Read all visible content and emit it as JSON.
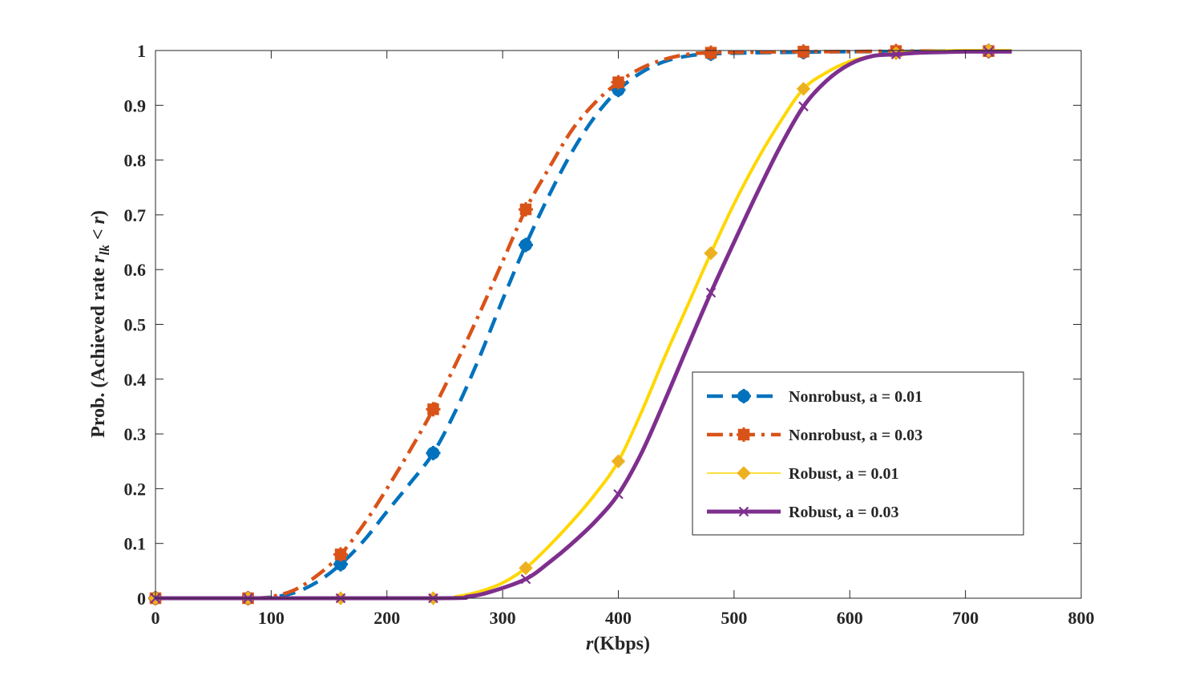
{
  "chart_data": {
    "type": "line",
    "title": "",
    "xlabel": {
      "italic": "r",
      "rest": "(Kbps)"
    },
    "ylabel": {
      "prefix": "Prob. (Achieved rate ",
      "var": "r",
      "sub": "lk",
      "rel": " < ",
      "var2": "r",
      "suffix": ")"
    },
    "xlim": [
      0,
      800
    ],
    "ylim": [
      0,
      1
    ],
    "xticks": [
      0,
      100,
      200,
      300,
      400,
      500,
      600,
      700,
      800
    ],
    "yticks": [
      0,
      0.1,
      0.2,
      0.3,
      0.4,
      0.5,
      0.6,
      0.7,
      0.8,
      0.9,
      1
    ],
    "xtick_labels": [
      "0",
      "100",
      "200",
      "300",
      "400",
      "500",
      "600",
      "700",
      "800"
    ],
    "ytick_labels": [
      "0",
      "0.1",
      "0.2",
      "0.3",
      "0.4",
      "0.5",
      "0.6",
      "0.7",
      "0.8",
      "0.9",
      "1"
    ],
    "grid": false,
    "legend_position": "center-right",
    "series": [
      {
        "name": "Nonrobust, a = 0.01",
        "color": "#0072BD",
        "line_style": "dashed",
        "marker": "circle-cross",
        "curve_x": [
          0,
          80,
          100,
          120,
          140,
          160,
          180,
          200,
          220,
          240,
          260,
          280,
          300,
          320,
          340,
          360,
          380,
          400,
          420,
          440,
          460,
          480,
          520,
          560,
          600,
          640,
          680,
          720,
          740
        ],
        "curve_y": [
          0,
          0,
          0.002,
          0.01,
          0.03,
          0.062,
          0.105,
          0.158,
          0.21,
          0.265,
          0.345,
          0.44,
          0.545,
          0.645,
          0.735,
          0.815,
          0.88,
          0.928,
          0.96,
          0.98,
          0.99,
          0.994,
          0.996,
          0.997,
          0.998,
          0.998,
          0.999,
          0.999,
          0.999
        ],
        "marker_x": [
          0,
          80,
          160,
          240,
          320,
          400,
          480,
          560,
          640,
          720
        ],
        "marker_y": [
          0,
          0,
          0.062,
          0.265,
          0.645,
          0.928,
          0.994,
          0.997,
          0.998,
          0.999
        ]
      },
      {
        "name": "Nonrobust, a = 0.03",
        "color": "#D95319",
        "line_style": "dashdot",
        "marker": "square-cross",
        "curve_x": [
          0,
          80,
          100,
          120,
          140,
          160,
          180,
          200,
          220,
          240,
          260,
          280,
          300,
          320,
          340,
          360,
          380,
          400,
          420,
          440,
          460,
          480,
          520,
          560,
          600,
          640,
          680,
          720,
          740
        ],
        "curve_y": [
          0,
          0,
          0.003,
          0.015,
          0.042,
          0.08,
          0.135,
          0.2,
          0.27,
          0.345,
          0.43,
          0.52,
          0.615,
          0.71,
          0.785,
          0.855,
          0.905,
          0.942,
          0.968,
          0.984,
          0.993,
          0.996,
          0.997,
          0.998,
          0.998,
          0.999,
          0.999,
          0.999,
          0.999
        ],
        "marker_x": [
          0,
          80,
          160,
          240,
          320,
          400,
          480,
          560,
          640,
          720
        ],
        "marker_y": [
          0,
          0,
          0.08,
          0.345,
          0.71,
          0.942,
          0.996,
          0.998,
          0.999,
          0.999
        ]
      },
      {
        "name": "Robust, a = 0.01",
        "color": "#EDB120",
        "line_color": "#FFD700",
        "line_style": "solid",
        "marker": "diamond",
        "curve_x": [
          0,
          240,
          260,
          280,
          300,
          320,
          340,
          360,
          380,
          400,
          420,
          440,
          460,
          480,
          500,
          520,
          540,
          560,
          580,
          600,
          620,
          640,
          660,
          680,
          700,
          720,
          740
        ],
        "curve_y": [
          0,
          0,
          0.003,
          0.012,
          0.028,
          0.055,
          0.095,
          0.14,
          0.19,
          0.25,
          0.34,
          0.44,
          0.535,
          0.63,
          0.72,
          0.8,
          0.87,
          0.93,
          0.96,
          0.98,
          0.99,
          0.995,
          0.998,
          0.999,
          1.0,
          1.0,
          1.0
        ],
        "marker_x": [
          0,
          80,
          160,
          240,
          320,
          400,
          480,
          560,
          640,
          720
        ],
        "marker_y": [
          0,
          0,
          0,
          0,
          0.055,
          0.25,
          0.63,
          0.93,
          0.995,
          1.0
        ]
      },
      {
        "name": "Robust, a = 0.03",
        "color": "#7E2F8E",
        "line_style": "solid",
        "marker": "x",
        "curve_x": [
          0,
          240,
          270,
          290,
          320,
          340,
          360,
          380,
          400,
          420,
          440,
          460,
          480,
          500,
          520,
          540,
          560,
          580,
          600,
          620,
          640,
          660,
          680,
          700,
          720,
          740
        ],
        "curve_y": [
          0,
          0,
          0.003,
          0.012,
          0.035,
          0.065,
          0.1,
          0.14,
          0.19,
          0.265,
          0.36,
          0.46,
          0.558,
          0.65,
          0.74,
          0.825,
          0.898,
          0.945,
          0.975,
          0.99,
          0.993,
          0.996,
          0.997,
          0.998,
          0.998,
          0.998
        ],
        "marker_x": [
          0,
          80,
          160,
          240,
          320,
          400,
          480,
          560,
          640,
          720
        ],
        "marker_y": [
          0,
          0,
          0,
          0,
          0.035,
          0.19,
          0.558,
          0.898,
          0.993,
          0.998
        ]
      }
    ]
  }
}
